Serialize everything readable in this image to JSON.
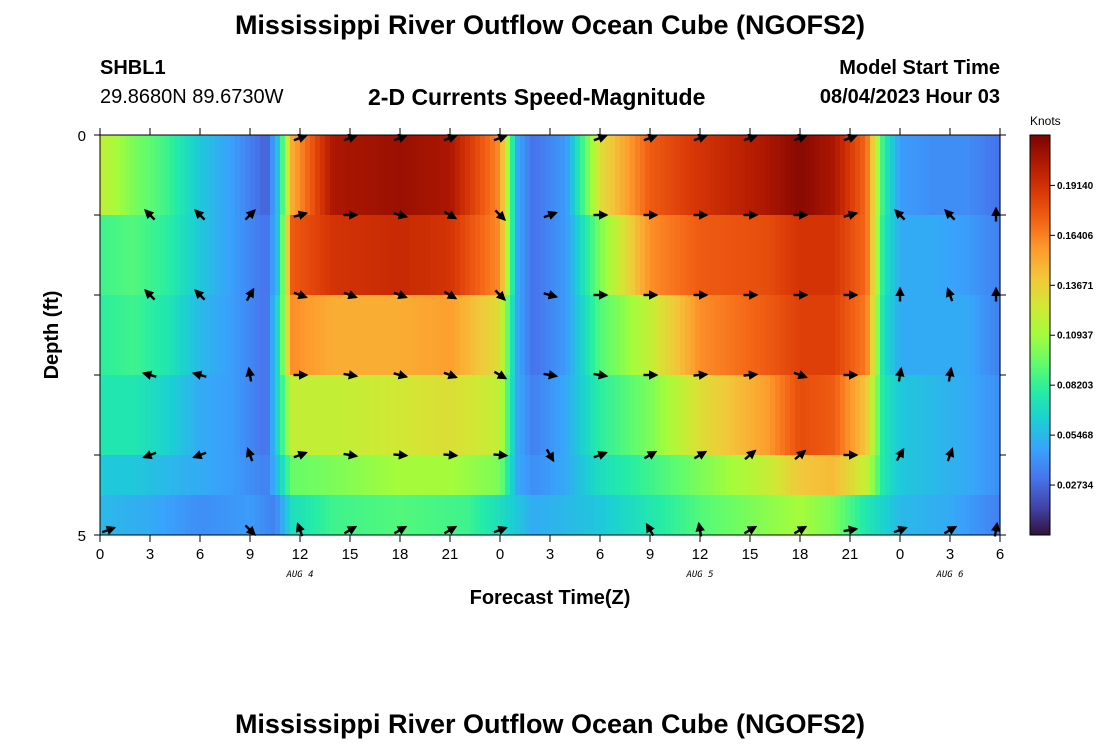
{
  "header": {
    "title": "Mississippi River Outflow Ocean Cube (NGOFS2)",
    "station_id": "SHBL1",
    "station_coords": "29.8680N  89.6730W",
    "plot_heading": "2-D Currents Speed-Magnitude",
    "model_start_label": "Model Start Time",
    "model_start_value": "08/04/2023 Hour 03"
  },
  "footer": {
    "title": "Mississippi River Outflow Ocean Cube (NGOFS2)"
  },
  "colors": {
    "arrow": "#000000",
    "frame": "#000000",
    "palette": [
      "#30123b",
      "#4145ab",
      "#4675ed",
      "#39a2fc",
      "#1bcfd4",
      "#24eca6",
      "#61fc6c",
      "#a4fc3b",
      "#d1e834",
      "#f3c63a",
      "#fe9b2d",
      "#f36315",
      "#d93806",
      "#b11901",
      "#7a0403"
    ]
  },
  "chart_data": {
    "type": "heatmap",
    "title": "2-D Currents Speed-Magnitude",
    "xlabel": "Forecast Time(Z)",
    "ylabel": "Depth (ft)",
    "x_tick_labels": [
      "0",
      "3",
      "6",
      "9",
      "12",
      "15",
      "18",
      "21",
      "0",
      "3",
      "6",
      "9",
      "12",
      "15",
      "18",
      "21",
      "0",
      "3",
      "6"
    ],
    "x_range_hours": [
      0,
      54
    ],
    "date_labels": [
      {
        "label": "AUG 4",
        "hour": 12
      },
      {
        "label": "AUG 5",
        "hour": 36
      },
      {
        "label": "AUG 6",
        "hour": 51
      }
    ],
    "y_range": [
      0,
      5
    ],
    "y_tick_labels": [
      {
        "value": 0,
        "label": "0"
      },
      {
        "value": 5,
        "label": "5"
      }
    ],
    "depth_layers": 5,
    "colorbar": {
      "title": "Knots",
      "range": [
        0.0,
        0.219
      ],
      "tick_values": [
        0.02734,
        0.05468,
        0.08203,
        0.10937,
        0.13671,
        0.16406,
        0.1914
      ],
      "tick_labels": [
        "0.02734",
        "0.05468",
        "0.08203",
        "0.10937",
        "0.13671",
        "0.16406",
        "0.19140"
      ]
    },
    "speed_keyframes": {
      "hours": [
        0,
        2,
        4,
        6,
        8,
        10,
        10.7,
        11.5,
        14,
        18,
        21,
        24,
        25,
        26,
        28,
        30,
        33,
        36,
        40,
        42,
        44,
        46,
        47,
        48,
        50,
        52,
        54
      ],
      "layers": [
        [
          0.12,
          0.1,
          0.085,
          0.06,
          0.045,
          0.025,
          0.06,
          0.15,
          0.205,
          0.21,
          0.205,
          0.16,
          0.05,
          0.03,
          0.045,
          0.13,
          0.175,
          0.19,
          0.205,
          0.215,
          0.205,
          0.17,
          0.08,
          0.045,
          0.04,
          0.04,
          0.03
        ],
        [
          0.085,
          0.09,
          0.08,
          0.06,
          0.045,
          0.03,
          0.06,
          0.175,
          0.19,
          0.195,
          0.19,
          0.16,
          0.05,
          0.03,
          0.045,
          0.1,
          0.16,
          0.175,
          0.18,
          0.19,
          0.19,
          0.17,
          0.075,
          0.05,
          0.05,
          0.045,
          0.035
        ],
        [
          0.08,
          0.085,
          0.075,
          0.055,
          0.045,
          0.03,
          0.07,
          0.16,
          0.15,
          0.15,
          0.155,
          0.13,
          0.05,
          0.03,
          0.045,
          0.09,
          0.12,
          0.16,
          0.175,
          0.185,
          0.185,
          0.165,
          0.07,
          0.05,
          0.05,
          0.05,
          0.035
        ],
        [
          0.075,
          0.075,
          0.065,
          0.05,
          0.045,
          0.03,
          0.07,
          0.12,
          0.12,
          0.125,
          0.13,
          0.12,
          0.05,
          0.035,
          0.05,
          0.08,
          0.1,
          0.13,
          0.155,
          0.18,
          0.175,
          0.14,
          0.075,
          0.06,
          0.055,
          0.05,
          0.04
        ],
        [
          0.06,
          0.06,
          0.055,
          0.05,
          0.045,
          0.035,
          0.06,
          0.095,
          0.1,
          0.11,
          0.11,
          0.1,
          0.05,
          0.04,
          0.05,
          0.07,
          0.085,
          0.1,
          0.12,
          0.14,
          0.145,
          0.12,
          0.075,
          0.06,
          0.055,
          0.05,
          0.04
        ]
      ],
      "bottom_strip": [
        [
          0,
          0.055
        ],
        [
          3,
          0.05
        ],
        [
          6,
          0.04
        ],
        [
          9,
          0.045
        ],
        [
          10.5,
          0.035
        ],
        [
          11.5,
          0.07
        ],
        [
          14,
          0.085
        ],
        [
          18,
          0.09
        ],
        [
          22,
          0.085
        ],
        [
          24,
          0.07
        ],
        [
          26,
          0.05
        ],
        [
          30,
          0.06
        ],
        [
          33,
          0.075
        ],
        [
          36,
          0.09
        ],
        [
          39,
          0.1
        ],
        [
          42,
          0.11
        ],
        [
          44,
          0.1
        ],
        [
          46,
          0.075
        ],
        [
          48,
          0.055
        ],
        [
          51,
          0.05
        ],
        [
          54,
          0.035
        ]
      ]
    },
    "vector_hours": [
      0.5,
      3,
      6,
      9,
      12,
      15,
      18,
      21,
      24,
      27,
      30,
      33,
      36,
      39,
      42,
      45,
      48,
      51,
      54
    ],
    "vectors_deg": [
      [
        null,
        null,
        null,
        null,
        20,
        20,
        20,
        20,
        20,
        null,
        20,
        20,
        20,
        20,
        20,
        20,
        null,
        null,
        null
      ],
      [
        null,
        135,
        135,
        45,
        15,
        0,
        -15,
        -30,
        -45,
        20,
        0,
        0,
        0,
        0,
        0,
        15,
        135,
        135,
        90
      ],
      [
        null,
        135,
        135,
        60,
        -20,
        -20,
        -20,
        -30,
        -45,
        -15,
        0,
        0,
        0,
        0,
        0,
        0,
        90,
        110,
        90
      ],
      [
        null,
        165,
        165,
        100,
        0,
        -10,
        -15,
        -20,
        -30,
        -10,
        -10,
        0,
        5,
        5,
        -20,
        0,
        80,
        80,
        null
      ],
      [
        null,
        200,
        200,
        110,
        20,
        -10,
        -5,
        -5,
        -5,
        -60,
        20,
        30,
        30,
        40,
        40,
        0,
        60,
        70,
        null
      ],
      [
        20,
        null,
        null,
        -45,
        110,
        30,
        30,
        30,
        20,
        null,
        null,
        120,
        100,
        30,
        30,
        10,
        20,
        30,
        80
      ]
    ]
  }
}
